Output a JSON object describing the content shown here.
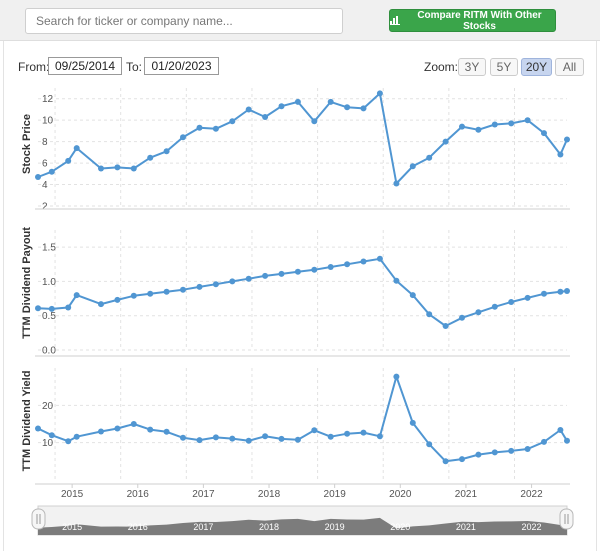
{
  "search": {
    "placeholder": "Search for ticker or company name..."
  },
  "compare_button": {
    "label": "Compare RITM With Other Stocks",
    "icon": "bar-chart-icon",
    "color": "#3aa54a"
  },
  "date_range": {
    "from_label": "From:",
    "from_value": "09/25/2014",
    "to_label": "To:",
    "to_value": "01/20/2023"
  },
  "zoom": {
    "label": "Zoom:",
    "options": [
      "3Y",
      "5Y",
      "20Y",
      "All"
    ],
    "active": "20Y"
  },
  "colors": {
    "series": "#5096d2",
    "grid": "#e2e2e2",
    "navigator": "#777777"
  },
  "chart_data": [
    {
      "type": "line",
      "ylabel": "Stock Price",
      "ylim": [
        2,
        13
      ],
      "yticks": [
        "2",
        "4",
        "6",
        "8",
        "10",
        "12"
      ],
      "x": [
        2014.74,
        2014.95,
        2015.2,
        2015.33,
        2015.7,
        2015.95,
        2016.2,
        2016.45,
        2016.7,
        2016.95,
        2017.2,
        2017.45,
        2017.7,
        2017.95,
        2018.2,
        2018.45,
        2018.7,
        2018.95,
        2019.2,
        2019.45,
        2019.7,
        2019.95,
        2020.2,
        2020.45,
        2020.7,
        2020.95,
        2021.2,
        2021.45,
        2021.7,
        2021.95,
        2022.2,
        2022.45,
        2022.7,
        2022.8
      ],
      "values": [
        4.7,
        5.2,
        6.2,
        7.4,
        5.5,
        5.6,
        5.5,
        6.5,
        7.1,
        8.4,
        9.3,
        9.2,
        9.9,
        11.0,
        10.3,
        11.3,
        11.7,
        9.9,
        11.7,
        11.2,
        11.1,
        12.5,
        4.1,
        5.7,
        6.5,
        8.0,
        9.4,
        9.1,
        9.6,
        9.7,
        10.0,
        8.8,
        6.8,
        8.2
      ]
    },
    {
      "type": "line",
      "ylabel": "TTM Dividend Payout",
      "ylim": [
        0,
        1.75
      ],
      "yticks": [
        "0.0",
        "0.5",
        "1.0",
        "1.5"
      ],
      "x": [
        2014.74,
        2014.95,
        2015.2,
        2015.33,
        2015.7,
        2015.95,
        2016.2,
        2016.45,
        2016.7,
        2016.95,
        2017.2,
        2017.45,
        2017.7,
        2017.95,
        2018.2,
        2018.45,
        2018.7,
        2018.95,
        2019.2,
        2019.45,
        2019.7,
        2019.95,
        2020.2,
        2020.45,
        2020.7,
        2020.95,
        2021.2,
        2021.45,
        2021.7,
        2021.95,
        2022.2,
        2022.45,
        2022.7,
        2022.8
      ],
      "values": [
        0.61,
        0.6,
        0.62,
        0.8,
        0.67,
        0.73,
        0.79,
        0.82,
        0.85,
        0.88,
        0.92,
        0.96,
        1.0,
        1.04,
        1.08,
        1.11,
        1.14,
        1.17,
        1.21,
        1.25,
        1.29,
        1.33,
        1.01,
        0.8,
        0.52,
        0.35,
        0.47,
        0.55,
        0.63,
        0.7,
        0.76,
        0.82,
        0.85,
        0.86
      ]
    },
    {
      "type": "line",
      "ylabel": "TTM Dividend Yield",
      "ylim": [
        0,
        30
      ],
      "yticks": [
        "10",
        "20"
      ],
      "x": [
        2014.74,
        2014.95,
        2015.2,
        2015.33,
        2015.7,
        2015.95,
        2016.2,
        2016.45,
        2016.7,
        2016.95,
        2017.2,
        2017.45,
        2017.7,
        2017.95,
        2018.2,
        2018.45,
        2018.7,
        2018.95,
        2019.2,
        2019.45,
        2019.7,
        2019.95,
        2020.2,
        2020.45,
        2020.7,
        2020.95,
        2021.2,
        2021.45,
        2021.7,
        2021.95,
        2022.2,
        2022.45,
        2022.7,
        2022.8
      ],
      "values": [
        13.8,
        12.0,
        10.4,
        11.6,
        13.0,
        13.8,
        15.0,
        13.5,
        12.9,
        11.3,
        10.7,
        11.4,
        11.1,
        10.5,
        11.7,
        11.0,
        10.8,
        13.3,
        11.6,
        12.4,
        12.7,
        11.7,
        27.7,
        15.3,
        9.6,
        5.0,
        5.6,
        6.8,
        7.4,
        7.8,
        8.3,
        10.2,
        13.4,
        10.5
      ]
    }
  ],
  "x_axis": {
    "labels": [
      "2015",
      "2016",
      "2017",
      "2018",
      "2019",
      "2020",
      "2021",
      "2022"
    ]
  },
  "navigator": {
    "labels": [
      "2015",
      "2016",
      "2017",
      "2018",
      "2019",
      "2020",
      "2021",
      "2022"
    ]
  }
}
